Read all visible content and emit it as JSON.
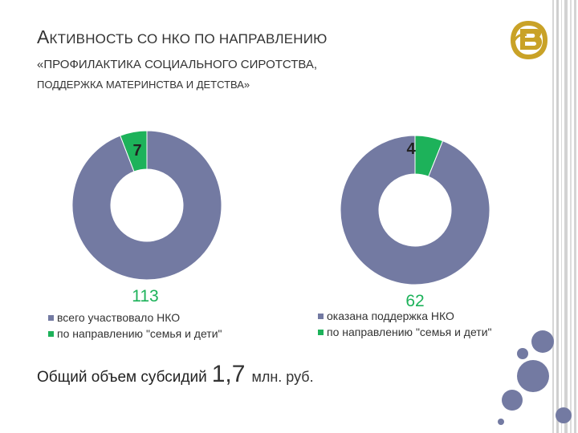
{
  "slide": {
    "title_line1_first": "А",
    "title_line1_rest": "КТИВНОСТЬ СО НКО ",
    "title_line1_tail": "ПО НАПРАВЛЕНИЮ",
    "title_line2": "«ПРОФИЛАКТИКА СОЦИАЛЬНОГО СИРОТСТВА,",
    "title_line3": "ПОДДЕРЖКА МАТЕРИНСТВА И ДЕТСТВА»",
    "subsidy_label": "Общий объем субсидий",
    "subsidy_value": "1,7",
    "subsidy_unit": "млн. руб."
  },
  "colors": {
    "primary": "#737aa2",
    "accent": "#1db25a",
    "logo_gold": "#c9a227",
    "stripe_gray": "#c8c8c8"
  },
  "chart_data": [
    {
      "type": "pie",
      "style": "doughnut",
      "categories": [
        "всего участвовало НКО",
        "по направлению \"семья и дети\""
      ],
      "values": [
        113,
        7
      ],
      "data_labels": [
        "113",
        "7"
      ],
      "legend": [
        "всего участвовало НКО",
        "по направлению \"семья и дети\""
      ],
      "legend_position": "bottom",
      "colors": [
        "#737aa2",
        "#1db25a"
      ]
    },
    {
      "type": "pie",
      "style": "doughnut",
      "categories": [
        "оказана поддержка НКО",
        "по направлению \"семья и дети\""
      ],
      "values": [
        62,
        4
      ],
      "data_labels": [
        "62",
        "4"
      ],
      "legend": [
        "оказана поддержка НКО",
        "по направлению \"семья и дети\""
      ],
      "legend_position": "bottom",
      "colors": [
        "#737aa2",
        "#1db25a"
      ]
    }
  ]
}
